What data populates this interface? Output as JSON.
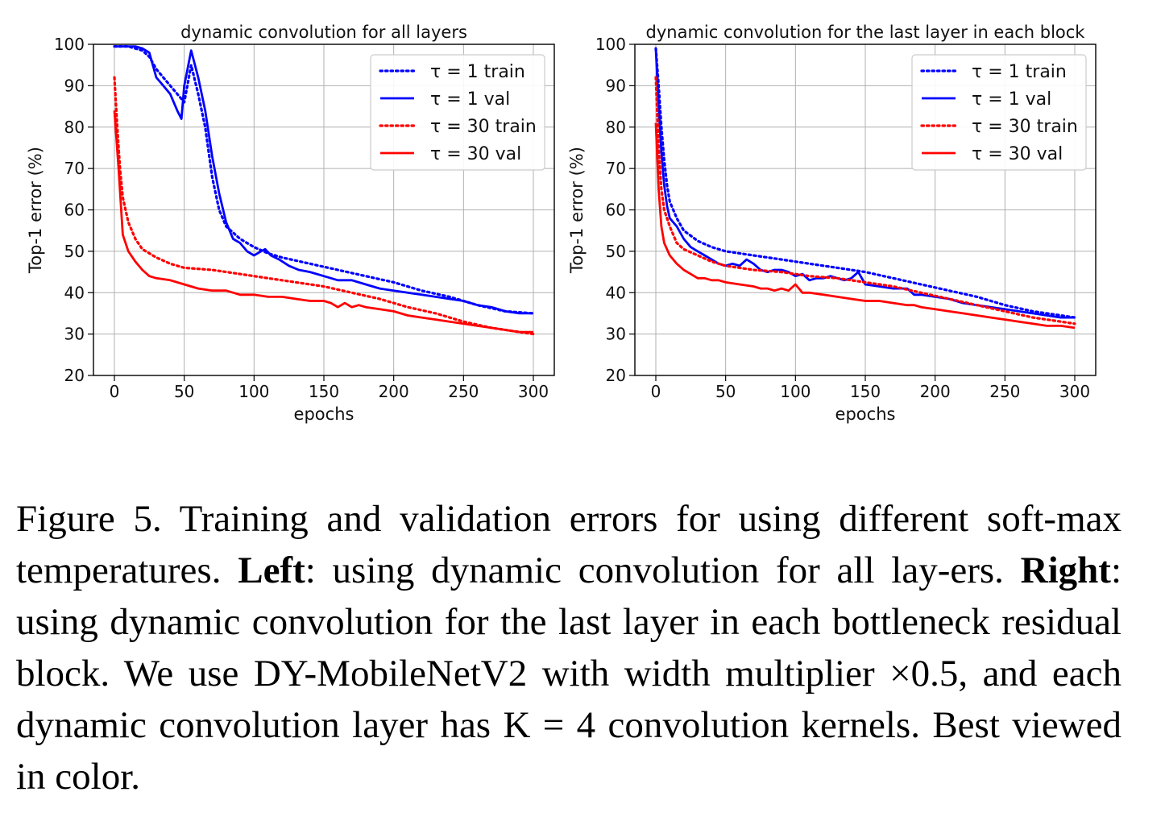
{
  "chart_data": [
    {
      "type": "line",
      "title": "dynamic convolution for all layers",
      "xlabel": "epochs",
      "ylabel": "Top-1 error (%)",
      "xlim": [
        -15,
        315
      ],
      "ylim": [
        20,
        100
      ],
      "xticks": [
        0,
        50,
        100,
        150,
        200,
        250,
        300
      ],
      "yticks": [
        20,
        30,
        40,
        50,
        60,
        70,
        80,
        90,
        100
      ],
      "grid": true,
      "legend_position": "top-right",
      "series": [
        {
          "name": "τ = 1 train",
          "color": "#0000ff",
          "style": "dotted",
          "x": [
            0,
            10,
            20,
            25,
            30,
            40,
            50,
            55,
            60,
            65,
            70,
            75,
            80,
            90,
            100,
            110,
            120,
            140,
            160,
            180,
            200,
            220,
            240,
            260,
            280,
            300
          ],
          "y": [
            99.5,
            99.5,
            98.5,
            97,
            94,
            90,
            86,
            95,
            88,
            80,
            68,
            60,
            56,
            53,
            51,
            49.5,
            48.5,
            47,
            45.5,
            44,
            42.5,
            40.5,
            39,
            37,
            35.5,
            35
          ]
        },
        {
          "name": "τ = 1 val",
          "color": "#0000ff",
          "style": "solid",
          "x": [
            0,
            5,
            10,
            15,
            20,
            25,
            30,
            35,
            40,
            45,
            48,
            50,
            55,
            60,
            65,
            70,
            75,
            80,
            85,
            90,
            95,
            100,
            105,
            108,
            112,
            118,
            125,
            132,
            140,
            150,
            160,
            170,
            180,
            190,
            200,
            210,
            220,
            230,
            240,
            250,
            260,
            270,
            280,
            290,
            300
          ],
          "y": [
            99.5,
            99.5,
            99.5,
            99.5,
            99,
            98,
            92,
            90,
            88,
            84,
            82,
            90,
            98.5,
            92,
            84,
            73,
            64,
            57,
            53,
            52,
            50,
            49,
            50,
            50.5,
            49,
            48,
            46.5,
            45.5,
            45,
            44,
            43,
            43,
            42,
            41,
            40.5,
            40,
            39.5,
            39,
            38.5,
            38,
            37,
            36.5,
            35.5,
            35,
            35
          ]
        },
        {
          "name": "τ = 30 train",
          "color": "#ff0000",
          "style": "dotted",
          "x": [
            0,
            2,
            4,
            6,
            10,
            15,
            20,
            30,
            40,
            50,
            70,
            90,
            110,
            130,
            150,
            170,
            190,
            210,
            230,
            250,
            270,
            290,
            300
          ],
          "y": [
            92,
            80,
            70,
            63,
            57,
            53,
            50.5,
            48.5,
            47,
            46,
            45.5,
            44.5,
            43.5,
            42.5,
            41.5,
            40,
            38.5,
            36.5,
            35,
            33,
            31.5,
            30.5,
            30
          ]
        },
        {
          "name": "τ = 30 val",
          "color": "#ff0000",
          "style": "solid",
          "x": [
            0,
            3,
            6,
            10,
            15,
            20,
            25,
            30,
            40,
            50,
            60,
            70,
            80,
            90,
            100,
            110,
            120,
            130,
            140,
            150,
            155,
            160,
            165,
            170,
            175,
            180,
            190,
            200,
            210,
            220,
            230,
            240,
            250,
            260,
            270,
            280,
            290,
            300
          ],
          "y": [
            84,
            70,
            54,
            50,
            47.5,
            45.5,
            44,
            43.5,
            43,
            42,
            41,
            40.5,
            40.5,
            39.5,
            39.5,
            39,
            39,
            38.5,
            38,
            38,
            37.5,
            36.5,
            37.5,
            36.5,
            37,
            36.5,
            36,
            35.5,
            34.5,
            34,
            33.5,
            33,
            32.5,
            32,
            31.5,
            31,
            30.5,
            30.5
          ]
        }
      ]
    },
    {
      "type": "line",
      "title": "dynamic convolution for the last layer in each block",
      "xlabel": "epochs",
      "ylabel": "Top-1 error (%)",
      "xlim": [
        -15,
        315
      ],
      "ylim": [
        20,
        100
      ],
      "xticks": [
        0,
        50,
        100,
        150,
        200,
        250,
        300
      ],
      "yticks": [
        20,
        30,
        40,
        50,
        60,
        70,
        80,
        90,
        100
      ],
      "grid": true,
      "legend_position": "top-right",
      "series": [
        {
          "name": "τ = 1 train",
          "color": "#0000ff",
          "style": "dotted",
          "x": [
            0,
            2,
            4,
            6,
            8,
            10,
            15,
            20,
            30,
            40,
            50,
            70,
            90,
            110,
            130,
            150,
            170,
            190,
            210,
            230,
            250,
            270,
            290,
            300
          ],
          "y": [
            99,
            90,
            80,
            72,
            66,
            62,
            58,
            55,
            52.5,
            51,
            50,
            49,
            48,
            47,
            46,
            45,
            43.5,
            42,
            40.5,
            39,
            37,
            35.5,
            34.5,
            34
          ]
        },
        {
          "name": "τ = 1 val",
          "color": "#0000ff",
          "style": "solid",
          "x": [
            0,
            2,
            4,
            6,
            8,
            10,
            15,
            20,
            25,
            30,
            35,
            40,
            45,
            50,
            55,
            60,
            65,
            70,
            75,
            80,
            85,
            90,
            95,
            100,
            105,
            110,
            115,
            120,
            125,
            130,
            135,
            140,
            145,
            150,
            160,
            170,
            180,
            185,
            190,
            200,
            210,
            220,
            230,
            240,
            250,
            260,
            270,
            280,
            290,
            300
          ],
          "y": [
            99,
            85,
            74,
            66,
            61,
            58,
            56,
            53,
            51,
            50,
            49,
            48,
            47,
            46.5,
            47,
            46.5,
            48,
            47,
            45.5,
            45,
            45.5,
            45.5,
            45,
            44,
            44.5,
            43,
            43.5,
            43.5,
            44,
            43.5,
            43,
            43.5,
            45,
            42,
            41.5,
            41,
            41,
            39.5,
            39.5,
            39,
            38.5,
            37.5,
            37,
            36.5,
            36,
            35.5,
            35,
            34.5,
            34,
            34
          ]
        },
        {
          "name": "τ = 30 train",
          "color": "#ff0000",
          "style": "dotted",
          "x": [
            0,
            2,
            4,
            6,
            10,
            15,
            20,
            30,
            40,
            50,
            70,
            90,
            110,
            130,
            150,
            170,
            190,
            210,
            230,
            250,
            270,
            290,
            300
          ],
          "y": [
            92,
            75,
            65,
            60,
            56,
            52,
            50.5,
            49,
            47.5,
            46.5,
            45.5,
            45,
            44,
            43.5,
            42.5,
            41.5,
            40,
            38.5,
            37,
            35.5,
            34,
            33,
            32.5
          ]
        },
        {
          "name": "τ = 30 val",
          "color": "#ff0000",
          "style": "solid",
          "x": [
            0,
            2,
            4,
            6,
            10,
            15,
            20,
            25,
            30,
            35,
            40,
            45,
            50,
            60,
            70,
            75,
            80,
            85,
            90,
            95,
            100,
            105,
            110,
            120,
            130,
            140,
            150,
            160,
            170,
            180,
            185,
            190,
            200,
            210,
            220,
            230,
            240,
            250,
            260,
            270,
            280,
            290,
            300
          ],
          "y": [
            81,
            65,
            56,
            52,
            49,
            47,
            45.5,
            44.5,
            43.5,
            43.5,
            43,
            43,
            42.5,
            42,
            41.5,
            41,
            41,
            40.5,
            41,
            40.5,
            42,
            40,
            40,
            39.5,
            39,
            38.5,
            38,
            38,
            37.5,
            37,
            37,
            36.5,
            36,
            35.5,
            35,
            34.5,
            34,
            33.5,
            33,
            32.5,
            32,
            32,
            31.5
          ]
        }
      ]
    }
  ],
  "caption": {
    "lead": "Figure 5. Training and validation errors for using different soft-max temperatures.",
    "left_label": "Left",
    "left_text": ": using dynamic convolution for all lay-ers.",
    "right_label": "Right",
    "right_text": ": using dynamic convolution for the last layer in each bottleneck residual block. We use DY-MobileNetV2 with width multiplier ×0.5, and each dynamic convolution layer has K = 4 convolution kernels. Best viewed in color."
  }
}
